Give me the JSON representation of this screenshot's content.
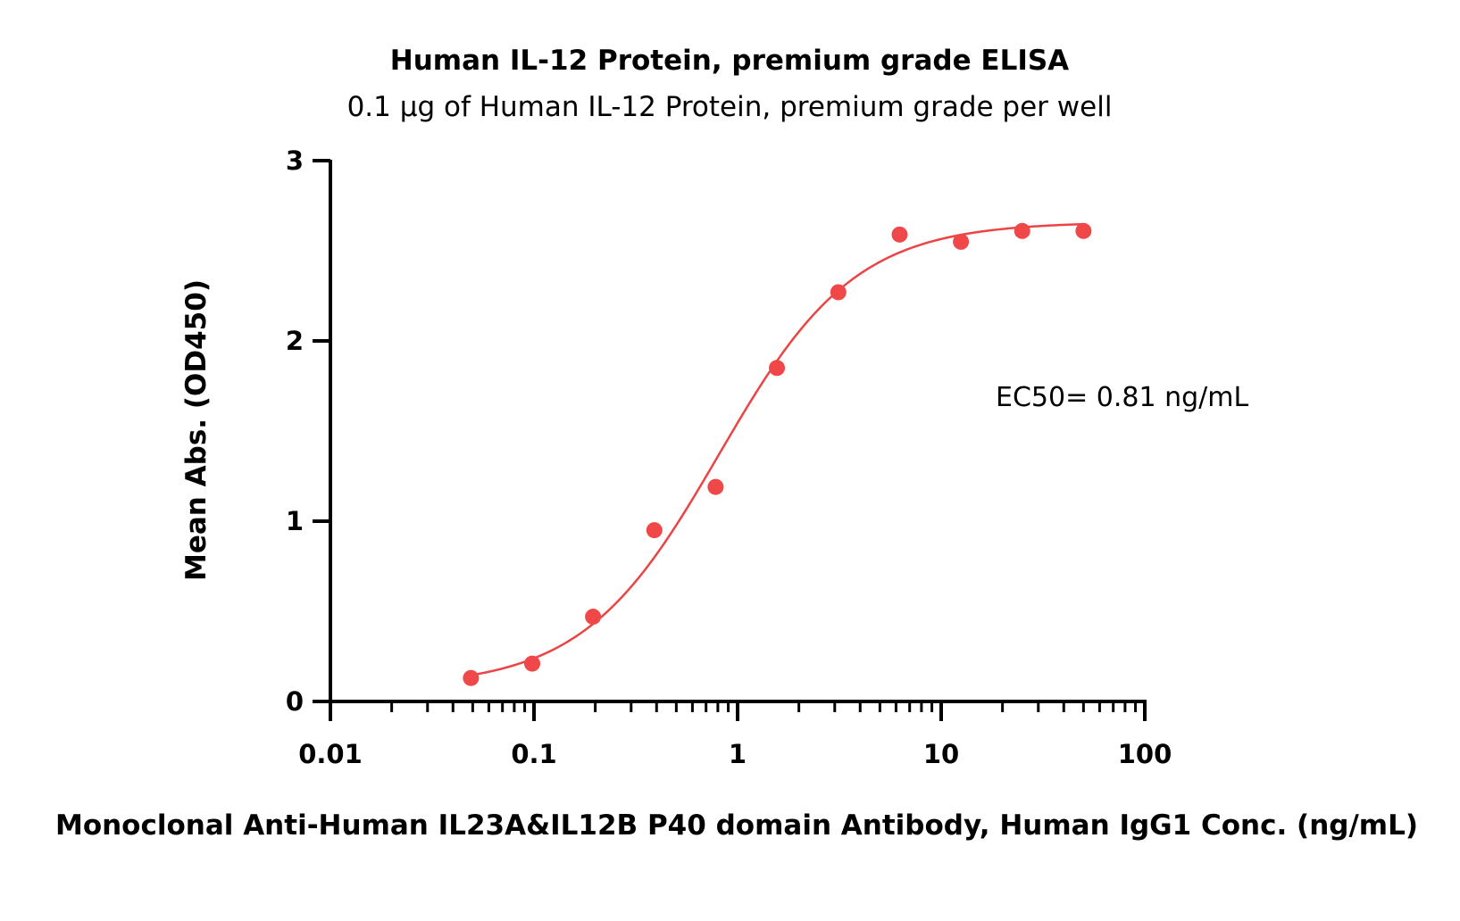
{
  "chart_data": {
    "type": "scatter",
    "title": "Human IL-12 Protein, premium grade ELISA",
    "subtitle": "0.1 µg of Human IL-12 Protein, premium grade per well",
    "xlabel": "Monoclonal Anti-Human IL23A&IL12B P40 domain Antibody, Human IgG1 Conc. (ng/mL)",
    "ylabel": "Mean Abs. (OD450)",
    "x_scale": "log",
    "xlim": [
      0.01,
      100
    ],
    "ylim": [
      0,
      3
    ],
    "x_ticks": [
      0.01,
      0.1,
      1,
      10,
      100
    ],
    "x_tick_labels": [
      "0.01",
      "0.1",
      "1",
      "10",
      "100"
    ],
    "y_ticks": [
      0,
      1,
      2,
      3
    ],
    "y_tick_labels": [
      "0",
      "1",
      "2",
      "3"
    ],
    "grid": false,
    "marker_color": "#f04848",
    "curve_color": "#ec4444",
    "series": [
      {
        "x": [
          0.049,
          0.098,
          0.195,
          0.39,
          0.78,
          1.56,
          3.125,
          6.25,
          12.5,
          25,
          50
        ],
        "y": [
          0.13,
          0.21,
          0.47,
          0.95,
          1.19,
          1.85,
          2.27,
          2.59,
          2.55,
          2.61,
          2.61
        ]
      }
    ],
    "fit_curve": {
      "model": "4PL",
      "bottom": 0.08,
      "top": 2.66,
      "ec50": 0.81,
      "hill": 1.3
    },
    "annotation": "EC50= 0.81 ng/mL"
  }
}
